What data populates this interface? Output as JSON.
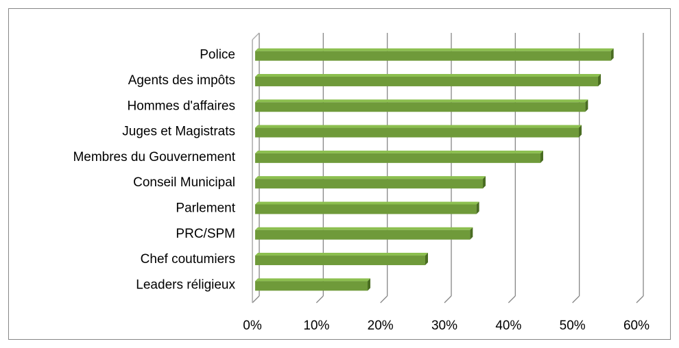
{
  "chart_data": {
    "type": "bar",
    "orientation": "horizontal",
    "style": "3d",
    "categories": [
      "Police",
      "Agents des impôts",
      "Hommes d'affaires",
      "Juges et Magistrats",
      "Membres du Gouvernement",
      "Conseil Municipal",
      "Parlement",
      "PRC/SPM",
      "Chef coutumiers",
      "Leaders réligieux"
    ],
    "values": [
      56,
      54,
      52,
      51,
      45,
      36,
      35,
      34,
      27,
      18
    ],
    "x_ticks": [
      "0%",
      "10%",
      "20%",
      "30%",
      "40%",
      "50%",
      "60%"
    ],
    "xlim": [
      0,
      60
    ],
    "grid": true,
    "legend": "none",
    "title": "",
    "xlabel": "",
    "ylabel": "",
    "colors": {
      "bar_front": "#6f9a3a",
      "bar_top": "#8cbf4f",
      "bar_side": "#4a6d22",
      "grid": "#868686",
      "wall": "#aaaaaa"
    }
  }
}
